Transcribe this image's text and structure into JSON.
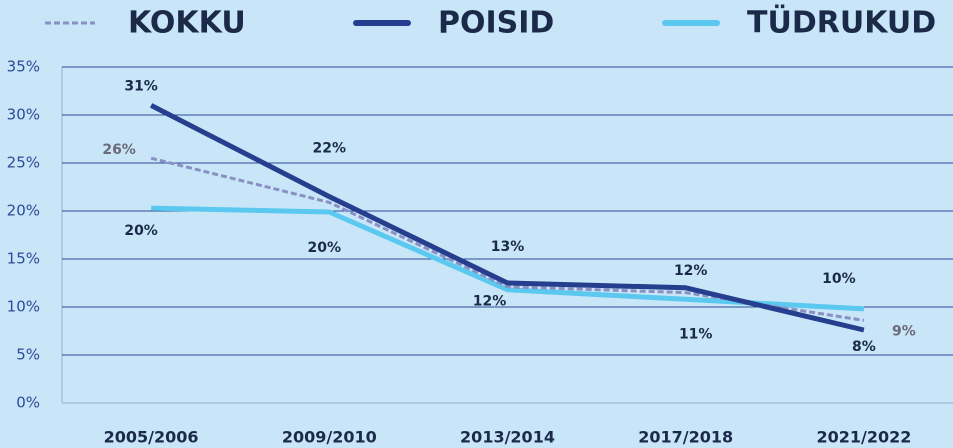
{
  "chart_data": {
    "type": "line",
    "categories": [
      "2005/2006",
      "2009/2010",
      "2013/2014",
      "2017/2018",
      "2021/2022"
    ],
    "series": [
      {
        "name": "KOKKU",
        "color": "#8a8fc4",
        "dashed": true,
        "values": [
          25.5,
          20.9,
          12.1,
          11.5,
          8.6
        ],
        "value_labels": [
          "26%",
          null,
          null,
          null,
          "9%"
        ]
      },
      {
        "name": "POISID",
        "color": "#253f8e",
        "values": [
          31.0,
          21.5,
          12.5,
          12.0,
          7.6
        ],
        "value_labels": [
          "31%",
          "22%",
          "13%",
          "12%",
          "8%"
        ]
      },
      {
        "name": "TÜDRUKUD",
        "color": "#5bc8f0",
        "values": [
          20.3,
          19.9,
          11.8,
          10.8,
          9.8
        ],
        "value_labels": [
          "20%",
          "20%",
          "12%",
          "11%",
          "10%"
        ]
      }
    ],
    "ylim": [
      0,
      35
    ],
    "yticks": [
      {
        "value": 0,
        "label": "0%"
      },
      {
        "value": 5,
        "label": "5%"
      },
      {
        "value": 10,
        "label": "10%"
      },
      {
        "value": 15,
        "label": "15%"
      },
      {
        "value": 20,
        "label": "20%"
      },
      {
        "value": 25,
        "label": "25%"
      },
      {
        "value": 30,
        "label": "30%"
      },
      {
        "value": 35,
        "label": "35%"
      }
    ],
    "grid": true
  }
}
